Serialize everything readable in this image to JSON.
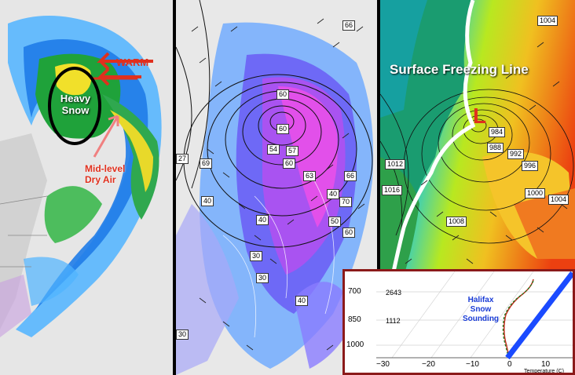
{
  "panel_left": {
    "warm_label": "WARM",
    "heavy_snow_label": "Heavy Snow",
    "dry_air_label": "Mid-level Dry Air",
    "colors": {
      "warm_arrow": "#e0301e",
      "dry_arrow": "#f08080",
      "snow_ring": "#000000"
    }
  },
  "panel_middle": {
    "contour_labels": [
      "66",
      "60",
      "60",
      "57",
      "54",
      "60",
      "63",
      "66",
      "70",
      "40",
      "50",
      "60",
      "40",
      "40",
      "30",
      "40",
      "30",
      "69",
      "27",
      "30",
      "84"
    ]
  },
  "panel_right": {
    "freezing_line_label": "Surface Freezing Line",
    "low_marker": "L",
    "isobar_labels": [
      "1004",
      "984",
      "988",
      "992",
      "996",
      "1000",
      "1004",
      "1012",
      "1016",
      "1008"
    ]
  },
  "inset": {
    "title": "Halifax Snow Sounding",
    "pressure_labels": [
      "700",
      "850",
      "1000"
    ],
    "height_labels": [
      "2643",
      "1112"
    ],
    "x_ticks": [
      "−30",
      "−20",
      "−10",
      "0",
      "10"
    ],
    "x_axis_label": "Temperature (C)"
  }
}
